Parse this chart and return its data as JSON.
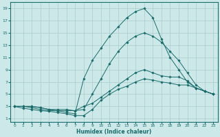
{
  "xlabel": "Humidex (Indice chaleur)",
  "bg_color": "#cce8e8",
  "line_color": "#1a6b6b",
  "grid_color": "#aacccc",
  "xlim": [
    -0.5,
    23.5
  ],
  "ylim": [
    0.5,
    20
  ],
  "xticks": [
    0,
    1,
    2,
    3,
    4,
    5,
    6,
    7,
    8,
    9,
    10,
    11,
    12,
    13,
    14,
    15,
    16,
    17,
    18,
    19,
    20,
    21,
    22,
    23
  ],
  "yticks": [
    1,
    3,
    5,
    7,
    9,
    11,
    13,
    15,
    17,
    19
  ],
  "line1_x": [
    0,
    1,
    2,
    3,
    4,
    5,
    6,
    7,
    8,
    9,
    10,
    11,
    12,
    13,
    14,
    15,
    16,
    17,
    18,
    19,
    20,
    21,
    22,
    23
  ],
  "line1_y": [
    3,
    2.7,
    2.5,
    2.3,
    2.2,
    2.0,
    1.8,
    1.5,
    1.5,
    2.5,
    4.0,
    5.0,
    5.8,
    6.3,
    7.0,
    7.5,
    7.3,
    7.0,
    6.8,
    6.5,
    6.5,
    6.0,
    5.5,
    5.0
  ],
  "line2_x": [
    0,
    1,
    2,
    3,
    4,
    5,
    6,
    7,
    8,
    9,
    10,
    11,
    12,
    13,
    14,
    15,
    16,
    17,
    18,
    19,
    20,
    21,
    22,
    23
  ],
  "line2_y": [
    3,
    3,
    2.8,
    2.5,
    2.3,
    2.3,
    2.3,
    2.3,
    3.0,
    3.5,
    4.5,
    5.5,
    6.5,
    7.5,
    8.5,
    9.0,
    8.5,
    8.0,
    7.8,
    7.8,
    7.2,
    6.0,
    5.5,
    5.0
  ],
  "line3_x": [
    0,
    1,
    2,
    3,
    4,
    5,
    6,
    7,
    8,
    9,
    10,
    11,
    12,
    13,
    14,
    15,
    16,
    17,
    18,
    19,
    20,
    21,
    22,
    23
  ],
  "line3_y": [
    3,
    3,
    3,
    2.8,
    2.5,
    2.5,
    2.5,
    2.3,
    2.5,
    5.0,
    7.5,
    10,
    12,
    13.5,
    14.5,
    15,
    14.5,
    13.5,
    12,
    10.5,
    8.5,
    6.5,
    5.5,
    5.0
  ],
  "line4_x": [
    0,
    1,
    2,
    3,
    4,
    5,
    6,
    7,
    8,
    9,
    10,
    11,
    12,
    13,
    14,
    15,
    16,
    17,
    18,
    19,
    20,
    21,
    22,
    23
  ],
  "line4_y": [
    3,
    3,
    3,
    2.8,
    2.5,
    2.3,
    2.0,
    1.8,
    7.5,
    10.5,
    12.5,
    14.5,
    16.0,
    17.5,
    18.5,
    19,
    17.5,
    14,
    11,
    9,
    7.0,
    6.0,
    5.5,
    5.0
  ]
}
